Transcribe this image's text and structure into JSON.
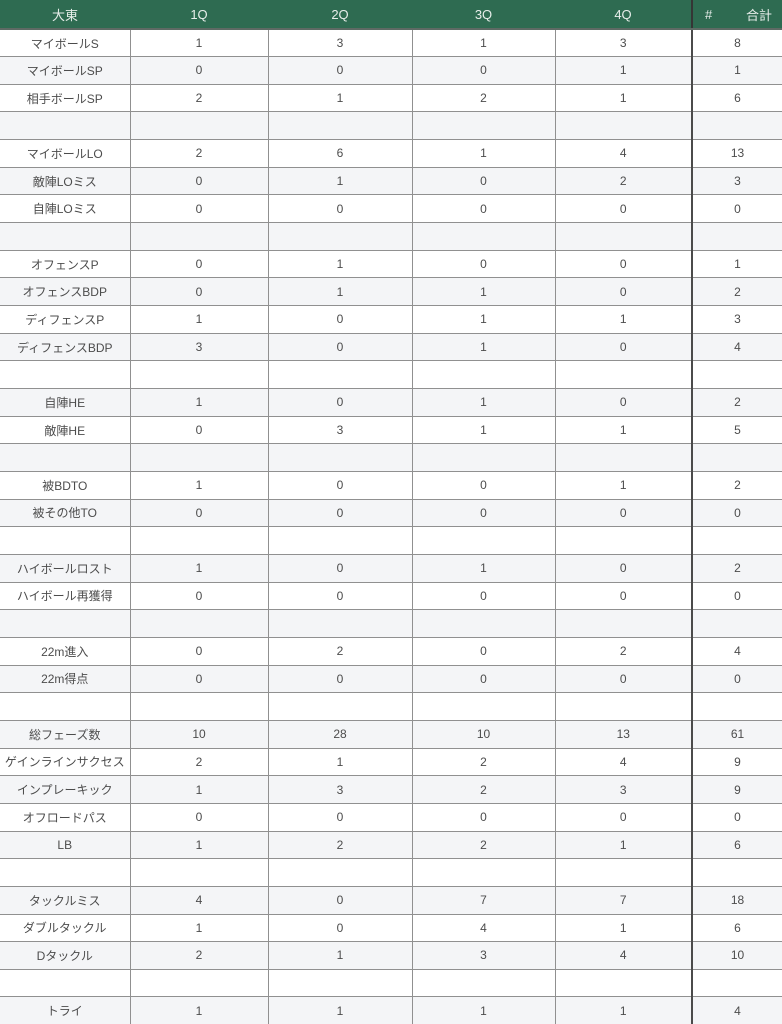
{
  "colors": {
    "header_bg": "#2e6b51",
    "header_text": "#e7eeea",
    "stripe_bg": "#f4f5f7",
    "grid_line": "#909090",
    "total_divider": "#4b4b4b",
    "cell_text": "#4c4c4c"
  },
  "table": {
    "header": {
      "team": "大東",
      "quarters": [
        "1Q",
        "2Q",
        "3Q",
        "4Q"
      ],
      "hash": "#",
      "total": "合計"
    },
    "rows": [
      {
        "label": "マイボールS",
        "values": [
          "1",
          "3",
          "1",
          "3",
          "8"
        ]
      },
      {
        "label": "マイボールSP",
        "values": [
          "0",
          "0",
          "0",
          "1",
          "1"
        ]
      },
      {
        "label": "相手ボールSP",
        "values": [
          "2",
          "1",
          "2",
          "1",
          "6"
        ]
      },
      {
        "label": "",
        "values": [
          "",
          "",
          "",
          "",
          ""
        ]
      },
      {
        "label": "マイボールLO",
        "values": [
          "2",
          "6",
          "1",
          "4",
          "13"
        ]
      },
      {
        "label": "敵陣LOミス",
        "values": [
          "0",
          "1",
          "0",
          "2",
          "3"
        ]
      },
      {
        "label": "自陣LOミス",
        "values": [
          "0",
          "0",
          "0",
          "0",
          "0"
        ]
      },
      {
        "label": "",
        "values": [
          "",
          "",
          "",
          "",
          ""
        ]
      },
      {
        "label": "オフェンスP",
        "values": [
          "0",
          "1",
          "0",
          "0",
          "1"
        ]
      },
      {
        "label": "オフェンスBDP",
        "values": [
          "0",
          "1",
          "1",
          "0",
          "2"
        ]
      },
      {
        "label": "ディフェンスP",
        "values": [
          "1",
          "0",
          "1",
          "1",
          "3"
        ]
      },
      {
        "label": "ディフェンスBDP",
        "values": [
          "3",
          "0",
          "1",
          "0",
          "4"
        ]
      },
      {
        "label": "",
        "values": [
          "",
          "",
          "",
          "",
          ""
        ]
      },
      {
        "label": "自陣HE",
        "values": [
          "1",
          "0",
          "1",
          "0",
          "2"
        ]
      },
      {
        "label": "敵陣HE",
        "values": [
          "0",
          "3",
          "1",
          "1",
          "5"
        ]
      },
      {
        "label": "",
        "values": [
          "",
          "",
          "",
          "",
          ""
        ]
      },
      {
        "label": "被BDTO",
        "values": [
          "1",
          "0",
          "0",
          "1",
          "2"
        ]
      },
      {
        "label": "被その他TO",
        "values": [
          "0",
          "0",
          "0",
          "0",
          "0"
        ]
      },
      {
        "label": "",
        "values": [
          "",
          "",
          "",
          "",
          ""
        ]
      },
      {
        "label": "ハイボールロスト",
        "values": [
          "1",
          "0",
          "1",
          "0",
          "2"
        ]
      },
      {
        "label": "ハイボール再獲得",
        "values": [
          "0",
          "0",
          "0",
          "0",
          "0"
        ]
      },
      {
        "label": "",
        "values": [
          "",
          "",
          "",
          "",
          ""
        ]
      },
      {
        "label": "22m進入",
        "values": [
          "0",
          "2",
          "0",
          "2",
          "4"
        ]
      },
      {
        "label": "22m得点",
        "values": [
          "0",
          "0",
          "0",
          "0",
          "0"
        ]
      },
      {
        "label": "",
        "values": [
          "",
          "",
          "",
          "",
          ""
        ]
      },
      {
        "label": "総フェーズ数",
        "values": [
          "10",
          "28",
          "10",
          "13",
          "61"
        ]
      },
      {
        "label": "ゲインラインサクセス",
        "values": [
          "2",
          "1",
          "2",
          "4",
          "9"
        ]
      },
      {
        "label": "インプレーキック",
        "values": [
          "1",
          "3",
          "2",
          "3",
          "9"
        ]
      },
      {
        "label": "オフロードパス",
        "values": [
          "0",
          "0",
          "0",
          "0",
          "0"
        ]
      },
      {
        "label": "LB",
        "values": [
          "1",
          "2",
          "2",
          "1",
          "6"
        ]
      },
      {
        "label": "",
        "values": [
          "",
          "",
          "",
          "",
          ""
        ]
      },
      {
        "label": "タックルミス",
        "values": [
          "4",
          "0",
          "7",
          "7",
          "18"
        ]
      },
      {
        "label": "ダブルタックル",
        "values": [
          "1",
          "0",
          "4",
          "1",
          "6"
        ]
      },
      {
        "label": "Dタックル",
        "values": [
          "2",
          "1",
          "3",
          "4",
          "10"
        ]
      },
      {
        "label": "",
        "values": [
          "",
          "",
          "",
          "",
          ""
        ]
      },
      {
        "label": "トライ",
        "values": [
          "1",
          "1",
          "1",
          "1",
          "4"
        ]
      }
    ]
  }
}
